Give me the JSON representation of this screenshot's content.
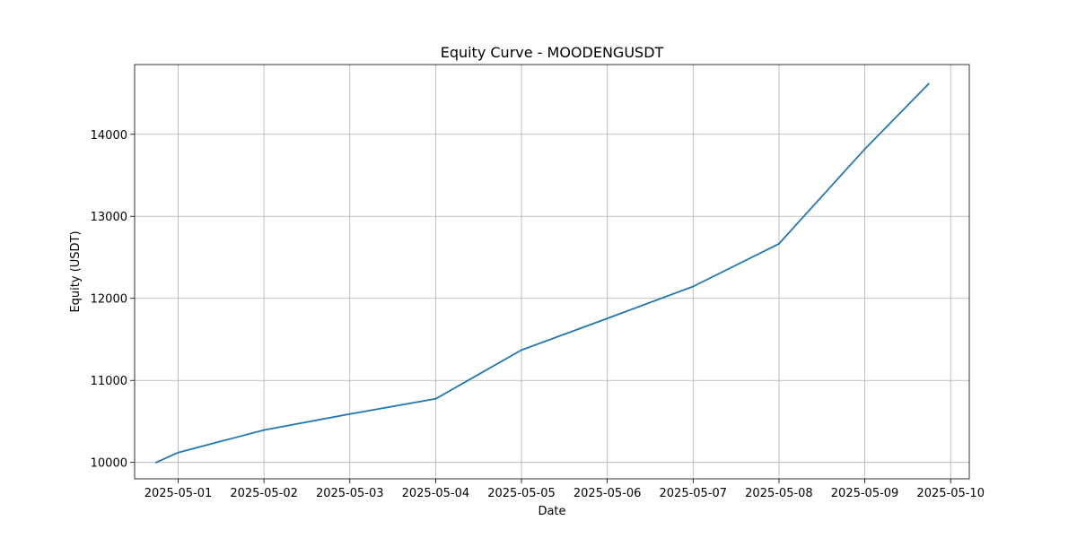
{
  "chart_data": {
    "type": "line",
    "title": "Equity Curve - MOODENGUSDT",
    "xlabel": "Date",
    "ylabel": "Equity (USDT)",
    "grid": true,
    "line_color": "#1f77b4",
    "xlim": [
      "2025-04-30T11:50",
      "2025-05-10T05:13"
    ],
    "ylim": [
      9800,
      14850
    ],
    "xticks": [
      "2025-05-01",
      "2025-05-02",
      "2025-05-03",
      "2025-05-04",
      "2025-05-05",
      "2025-05-06",
      "2025-05-07",
      "2025-05-08",
      "2025-05-09",
      "2025-05-10"
    ],
    "yticks": [
      10000,
      11000,
      12000,
      13000,
      14000
    ],
    "series": [
      {
        "x": [
          "2025-04-30T17:51",
          "2025-05-01",
          "2025-05-02",
          "2025-05-03",
          "2025-05-04",
          "2025-05-05",
          "2025-05-06",
          "2025-05-07",
          "2025-05-08",
          "2025-05-09",
          "2025-05-09T17:51"
        ],
        "values": [
          10000,
          10120,
          10395,
          10590,
          10775,
          11370,
          11755,
          12145,
          12665,
          13820,
          14615
        ]
      }
    ]
  }
}
